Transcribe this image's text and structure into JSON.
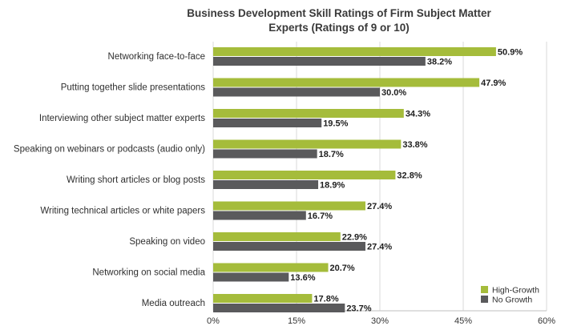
{
  "chart_data": {
    "type": "bar",
    "orientation": "horizontal",
    "title_lines": [
      "Business Development Skill Ratings of Firm Subject Matter",
      "Experts (Ratings of 9 or 10)"
    ],
    "categories": [
      "Networking face-to-face",
      "Putting together slide presentations",
      "Interviewing other subject matter experts",
      "Speaking on webinars or podcasts (audio only)",
      "Writing short articles or blog posts",
      "Writing technical articles or white papers",
      "Speaking on video",
      "Networking on social media",
      "Media outreach"
    ],
    "series": [
      {
        "name": "High-Growth",
        "color": "#a5bc3b",
        "values": [
          50.9,
          47.9,
          34.3,
          33.8,
          32.8,
          27.4,
          22.9,
          20.7,
          17.8
        ]
      },
      {
        "name": "No Growth",
        "color": "#5a5a5c",
        "values": [
          38.2,
          30.0,
          19.5,
          18.7,
          18.9,
          16.7,
          27.4,
          13.6,
          23.7
        ]
      }
    ],
    "value_labels": [
      [
        "50.9%",
        "47.9%",
        "34.3%",
        "33.8%",
        "32.8%",
        "27.4%",
        "22.9%",
        "20.7%",
        "17.8%"
      ],
      [
        "38.2%",
        "30.0%",
        "19.5%",
        "18.7%",
        "18.9%",
        "16.7%",
        "27.4%",
        "13.6%",
        "23.7%"
      ]
    ],
    "xlim": [
      0,
      60
    ],
    "xticks": [
      0,
      15,
      30,
      45,
      60
    ],
    "xtick_labels": [
      "0%",
      "15%",
      "30%",
      "45%",
      "60%"
    ],
    "legend_position": "bottom-right",
    "grid": true,
    "grid_color": "#d9d9d9"
  }
}
